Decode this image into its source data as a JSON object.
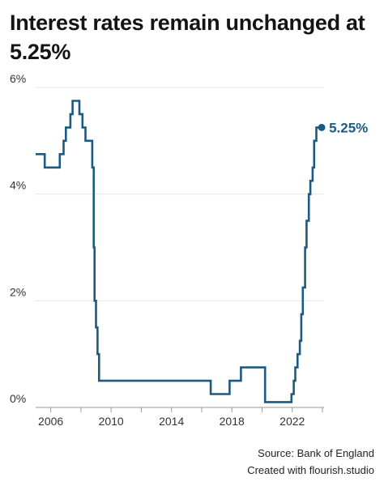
{
  "chart_data": {
    "type": "line",
    "step": true,
    "title": "Interest rates remain unchanged at 5.25%",
    "xlabel": "",
    "ylabel": "",
    "xlim": [
      2005.0,
      2024.0
    ],
    "ylim": [
      0,
      6
    ],
    "x_ticks": [
      2006,
      2010,
      2014,
      2018,
      2022
    ],
    "y_ticks": [
      0,
      2,
      4,
      6
    ],
    "y_tick_labels": [
      "0%",
      "2%",
      "4%",
      "6%"
    ],
    "grid": true,
    "line_color": "#1d5a82",
    "end_label": "5.25%",
    "series": [
      {
        "points": [
          [
            2005.0,
            4.75
          ],
          [
            2005.6,
            4.5
          ],
          [
            2006.6,
            4.75
          ],
          [
            2006.85,
            5.0
          ],
          [
            2007.0,
            5.25
          ],
          [
            2007.3,
            5.5
          ],
          [
            2007.45,
            5.75
          ],
          [
            2007.9,
            5.5
          ],
          [
            2008.1,
            5.25
          ],
          [
            2008.3,
            5.0
          ],
          [
            2008.75,
            4.5
          ],
          [
            2008.85,
            3.0
          ],
          [
            2008.9,
            2.0
          ],
          [
            2009.0,
            1.5
          ],
          [
            2009.1,
            1.0
          ],
          [
            2009.2,
            0.5
          ],
          [
            2016.6,
            0.25
          ],
          [
            2017.85,
            0.5
          ],
          [
            2018.6,
            0.75
          ],
          [
            2020.2,
            0.1
          ],
          [
            2021.95,
            0.25
          ],
          [
            2022.1,
            0.5
          ],
          [
            2022.2,
            0.75
          ],
          [
            2022.35,
            1.0
          ],
          [
            2022.5,
            1.25
          ],
          [
            2022.6,
            1.75
          ],
          [
            2022.7,
            2.25
          ],
          [
            2022.85,
            3.0
          ],
          [
            2022.95,
            3.5
          ],
          [
            2023.1,
            4.0
          ],
          [
            2023.2,
            4.25
          ],
          [
            2023.35,
            4.5
          ],
          [
            2023.45,
            5.0
          ],
          [
            2023.6,
            5.25
          ],
          [
            2023.95,
            5.25
          ]
        ]
      }
    ]
  },
  "footer": {
    "source": "Source: Bank of England",
    "credit": "Created with flourish.studio"
  }
}
